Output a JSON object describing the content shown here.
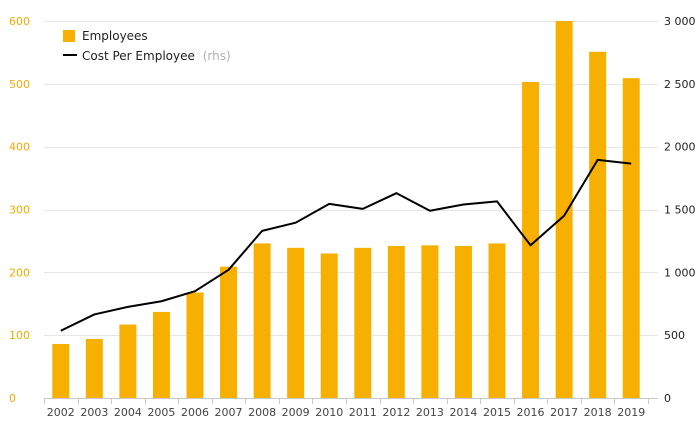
{
  "chart_data": {
    "type": "bar",
    "categories": [
      "2002",
      "2003",
      "2004",
      "2005",
      "2006",
      "2007",
      "2008",
      "2009",
      "2010",
      "2011",
      "2012",
      "2013",
      "2014",
      "2015",
      "2016",
      "2017",
      "2018",
      "2019"
    ],
    "series": [
      {
        "name": "Employees",
        "type": "bar",
        "axis": "left",
        "color": "#f8b000",
        "values": [
          86,
          94,
          117,
          137,
          168,
          209,
          246,
          239,
          230,
          239,
          242,
          243,
          242,
          246,
          503,
          600,
          551,
          509
        ]
      },
      {
        "name": "Cost Per Employee",
        "note": "(rhs)",
        "type": "line",
        "axis": "right",
        "color": "#000000",
        "values": [
          535,
          665,
          725,
          770,
          850,
          1020,
          1330,
          1395,
          1545,
          1505,
          1630,
          1490,
          1540,
          1565,
          1215,
          1450,
          1895,
          1865
        ]
      }
    ],
    "y_left": {
      "ticks": [
        0,
        100,
        200,
        300,
        400,
        500,
        600
      ],
      "tick_labels": [
        "0",
        "100",
        "200",
        "300",
        "400",
        "500",
        "600"
      ],
      "ylim": [
        0,
        600
      ],
      "color": "#f5a800"
    },
    "y_right": {
      "ticks": [
        0,
        500,
        1000,
        1500,
        2000,
        2500,
        3000
      ],
      "tick_labels": [
        "0",
        "500",
        "1 000",
        "1 500",
        "2 000",
        "2 500",
        "3 000"
      ],
      "ylim": [
        0,
        3000
      ]
    },
    "grid": true,
    "legend": "top-left",
    "title": "",
    "xlabel": "",
    "ylabel": ""
  }
}
